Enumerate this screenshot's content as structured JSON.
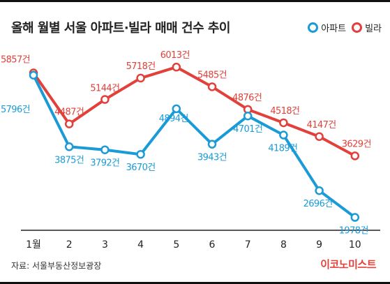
{
  "header": {
    "title": "올해 월별 서울 아파트·빌라 매매 건수 추이"
  },
  "legend": {
    "apt_label": "아파트",
    "villa_label": "빌라"
  },
  "footer": {
    "source": "자료: 서울부동산정보광장",
    "brand": "이코노미스트"
  },
  "colors": {
    "apt": "#1a9bd7",
    "villa": "#e2403a",
    "axis": "#222222"
  },
  "chart_data": {
    "type": "line",
    "categories": [
      "1월",
      "2",
      "3",
      "4",
      "5",
      "6",
      "7",
      "8",
      "9",
      "10"
    ],
    "series": [
      {
        "name": "아파트",
        "values": [
          5796,
          3875,
          3792,
          3670,
          4894,
          3943,
          4701,
          4189,
          2696,
          1978
        ],
        "labels": [
          "5796건",
          "3875건",
          "3792건",
          "3670건",
          "4894건",
          "3943건",
          "4701건",
          "4189건",
          "2696건",
          "1978건"
        ]
      },
      {
        "name": "빌라",
        "values": [
          5857,
          4487,
          5144,
          5718,
          6013,
          5485,
          4876,
          4518,
          4147,
          3629
        ],
        "labels": [
          "5857건",
          "4487건",
          "5144건",
          "5718건",
          "6013건",
          "5485건",
          "4876건",
          "4518건",
          "4147건",
          "3629건"
        ]
      }
    ],
    "legend_position": "top-right",
    "grid": false
  }
}
